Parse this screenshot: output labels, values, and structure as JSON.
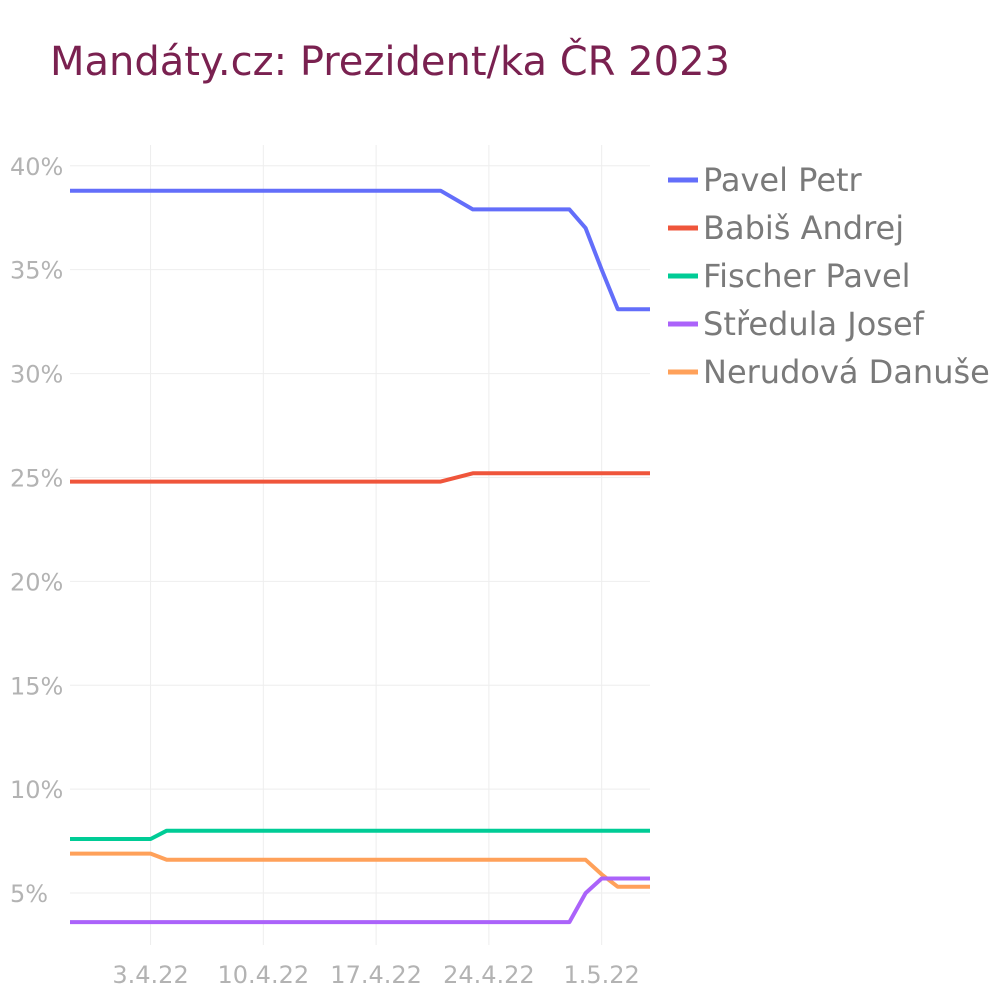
{
  "title": "Mandáty.cz: Prezident/ka ČR 2023",
  "colors": {
    "title": "#7a2150",
    "grid": "#eeeeee",
    "tick": "#b3b3b3",
    "legend_text": "#7a7a7a"
  },
  "chart_data": {
    "type": "line",
    "title": "Mandáty.cz: Prezident/ka ČR 2023",
    "xlabel": "",
    "ylabel": "",
    "x": [
      "2022-03-29",
      "2022-04-03",
      "2022-04-04",
      "2022-04-21",
      "2022-04-23",
      "2022-04-29",
      "2022-04-30",
      "2022-05-01",
      "2022-05-02",
      "2022-05-04"
    ],
    "xlim": [
      "2022-03-29",
      "2022-05-04"
    ],
    "ylim": [
      2.5,
      41
    ],
    "x_ticks": [
      {
        "date": "2022-04-03",
        "label": "3.4.22"
      },
      {
        "date": "2022-04-10",
        "label": "10.4.22"
      },
      {
        "date": "2022-04-17",
        "label": "17.4.22"
      },
      {
        "date": "2022-04-24",
        "label": "24.4.22"
      },
      {
        "date": "2022-05-01",
        "label": "1.5.22"
      }
    ],
    "y_ticks": [
      {
        "value": 5,
        "label": "5%"
      },
      {
        "value": 10,
        "label": "10%"
      },
      {
        "value": 15,
        "label": "15%"
      },
      {
        "value": 20,
        "label": "20%"
      },
      {
        "value": 25,
        "label": "25%"
      },
      {
        "value": 30,
        "label": "30%"
      },
      {
        "value": 35,
        "label": "35%"
      },
      {
        "value": 40,
        "label": "40%"
      }
    ],
    "grid": true,
    "legend_position": "right",
    "series": [
      {
        "name": "Pavel Petr",
        "color": "#636efa",
        "values": [
          38.8,
          38.8,
          38.8,
          38.8,
          37.9,
          37.9,
          37.0,
          35.0,
          33.1,
          33.1
        ]
      },
      {
        "name": "Babiš Andrej",
        "color": "#ef553b",
        "values": [
          24.8,
          24.8,
          24.8,
          24.8,
          25.2,
          25.2,
          25.2,
          25.2,
          25.2,
          25.2
        ]
      },
      {
        "name": "Fischer Pavel",
        "color": "#00cc96",
        "values": [
          7.6,
          7.6,
          8.0,
          8.0,
          8.0,
          8.0,
          8.0,
          8.0,
          8.0,
          8.0
        ]
      },
      {
        "name": "Středula Josef",
        "color": "#ab63fa",
        "values": [
          3.6,
          3.6,
          3.6,
          3.6,
          3.6,
          3.6,
          5.0,
          5.7,
          5.7,
          5.7
        ]
      },
      {
        "name": "Nerudová Danuše",
        "color": "#ffa15a",
        "values": [
          6.9,
          6.9,
          6.6,
          6.6,
          6.6,
          6.6,
          6.6,
          5.9,
          5.3,
          5.3
        ]
      }
    ]
  }
}
